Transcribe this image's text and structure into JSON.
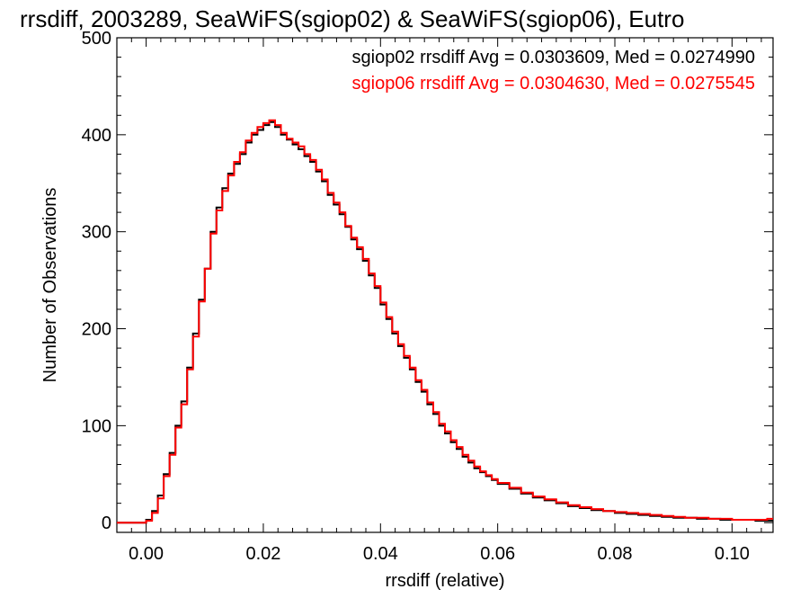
{
  "chart_data": {
    "type": "line",
    "title": "rrsdiff, 2003289, SeaWiFS(sgiop02) & SeaWiFS(sgiop06), Eutro",
    "xlabel": "rrsdiff (relative)",
    "ylabel": "Number of Observations",
    "xlim": [
      -0.005,
      0.107
    ],
    "ylim": [
      -10,
      500
    ],
    "xticks": [
      0.0,
      0.02,
      0.04,
      0.06,
      0.08,
      0.1
    ],
    "xtick_labels": [
      "0.00",
      "0.02",
      "0.04",
      "0.06",
      "0.08",
      "0.10"
    ],
    "yticks": [
      0,
      100,
      200,
      300,
      400,
      500
    ],
    "ytick_labels": [
      "0",
      "100",
      "200",
      "300",
      "400",
      "500"
    ],
    "grid": false,
    "legend_placement": "top-right",
    "legend": [
      {
        "text": "sgiop02 rrsdiff Avg = 0.0303609, Med = 0.0274990",
        "color": "#000000"
      },
      {
        "text": "sgiop06 rrsdiff Avg = 0.0304630, Med = 0.0275545",
        "color": "#ff0000"
      }
    ],
    "x": [
      -0.005,
      -0.002,
      0.0,
      0.001,
      0.002,
      0.003,
      0.004,
      0.005,
      0.006,
      0.007,
      0.008,
      0.009,
      0.01,
      0.011,
      0.012,
      0.013,
      0.014,
      0.015,
      0.016,
      0.017,
      0.018,
      0.019,
      0.02,
      0.021,
      0.022,
      0.023,
      0.024,
      0.025,
      0.026,
      0.027,
      0.028,
      0.029,
      0.03,
      0.031,
      0.032,
      0.033,
      0.034,
      0.035,
      0.036,
      0.037,
      0.038,
      0.039,
      0.04,
      0.041,
      0.042,
      0.043,
      0.044,
      0.045,
      0.046,
      0.047,
      0.048,
      0.049,
      0.05,
      0.051,
      0.052,
      0.053,
      0.054,
      0.055,
      0.056,
      0.057,
      0.058,
      0.059,
      0.06,
      0.062,
      0.064,
      0.066,
      0.068,
      0.07,
      0.072,
      0.074,
      0.076,
      0.078,
      0.08,
      0.082,
      0.084,
      0.086,
      0.088,
      0.09,
      0.092,
      0.094,
      0.096,
      0.098,
      0.1,
      0.102,
      0.104,
      0.106
    ],
    "series": [
      {
        "color": "#000000",
        "values": [
          0,
          0,
          3,
          12,
          28,
          50,
          72,
          100,
          125,
          160,
          195,
          230,
          262,
          300,
          325,
          345,
          360,
          370,
          380,
          392,
          400,
          405,
          410,
          413,
          408,
          400,
          395,
          390,
          385,
          378,
          372,
          362,
          352,
          338,
          328,
          318,
          305,
          292,
          282,
          270,
          255,
          242,
          225,
          210,
          195,
          182,
          170,
          158,
          145,
          135,
          122,
          112,
          100,
          92,
          83,
          76,
          68,
          62,
          56,
          52,
          48,
          44,
          40,
          35,
          30,
          26,
          23,
          20,
          17,
          15,
          13,
          12,
          10,
          9,
          8,
          7,
          6,
          5,
          5,
          4,
          4,
          3,
          3,
          3,
          2,
          2
        ]
      },
      {
        "color": "#ff0000",
        "values": [
          0,
          0,
          2,
          10,
          25,
          48,
          70,
          98,
          122,
          158,
          192,
          228,
          262,
          298,
          322,
          342,
          358,
          372,
          382,
          394,
          402,
          408,
          412,
          415,
          410,
          402,
          396,
          392,
          388,
          380,
          374,
          364,
          354,
          340,
          330,
          320,
          306,
          294,
          284,
          272,
          257,
          244,
          227,
          212,
          197,
          184,
          172,
          160,
          147,
          137,
          124,
          114,
          102,
          94,
          85,
          78,
          70,
          64,
          58,
          53,
          49,
          45,
          41,
          36,
          31,
          27,
          24,
          21,
          18,
          16,
          14,
          12,
          11,
          10,
          9,
          8,
          7,
          6,
          5,
          5,
          4,
          4,
          3,
          3,
          3,
          4
        ]
      }
    ]
  }
}
